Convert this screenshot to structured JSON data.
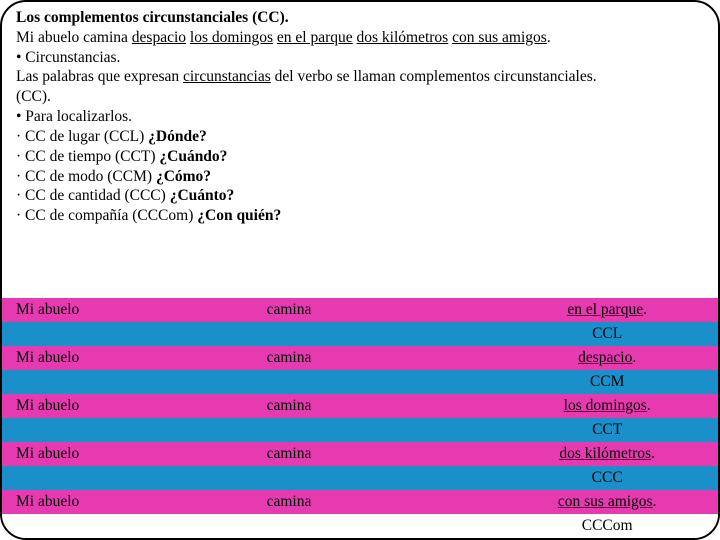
{
  "text": {
    "title": "Los complementos circunstanciales (CC).",
    "ex_l1": "Mi abuelo camina ",
    "ex_u1": "despacio",
    "ex_sp": " ",
    "ex_u2": "los domingos",
    "ex_u3": "en el parque",
    "ex_u4": "dos kilómetros",
    "ex_u5": "con sus amigos",
    "ex_dot": ".",
    "b1": "• Circunstancias.",
    "def1": "Las palabras que expresan ",
    "def_u": "circunstancias",
    "def2": " del verbo se llaman complementos circunstanciales.",
    "cc_paren": "(CC).",
    "b2": "• Para localizarlos.",
    "ccl": "· CC de lugar (CCL) ",
    "ccl_q": "¿Dónde?",
    "cct": "· CC de tiempo (CCT) ",
    "cct_q": "¿Cuándo?",
    "ccm": "· CC de modo (CCM) ",
    "ccm_q": "¿Cómo?",
    "ccc": "· CC de cantidad (CCC) ",
    "ccc_q": "¿Cuánto?",
    "cccom": "· CC de compañía (CCCom) ",
    "cccom_q": "¿Con quién?"
  },
  "tbl": {
    "subj": "Mi abuelo",
    "verb": "camina",
    "r1c": "en el parque",
    "r1t": "CCL",
    "r2c": "despacio",
    "r2t": "CCM",
    "r3c": "los domingos",
    "r3t": "CCT",
    "r4c": "dos kilómetros",
    "r4t": "CCC",
    "r5c": "con sus amigos",
    "r5t": "CCCom"
  },
  "colors": {
    "pink": "#e63bb0",
    "blue": "#1a8fc9",
    "white": "#ffffff",
    "black": "#000000"
  }
}
